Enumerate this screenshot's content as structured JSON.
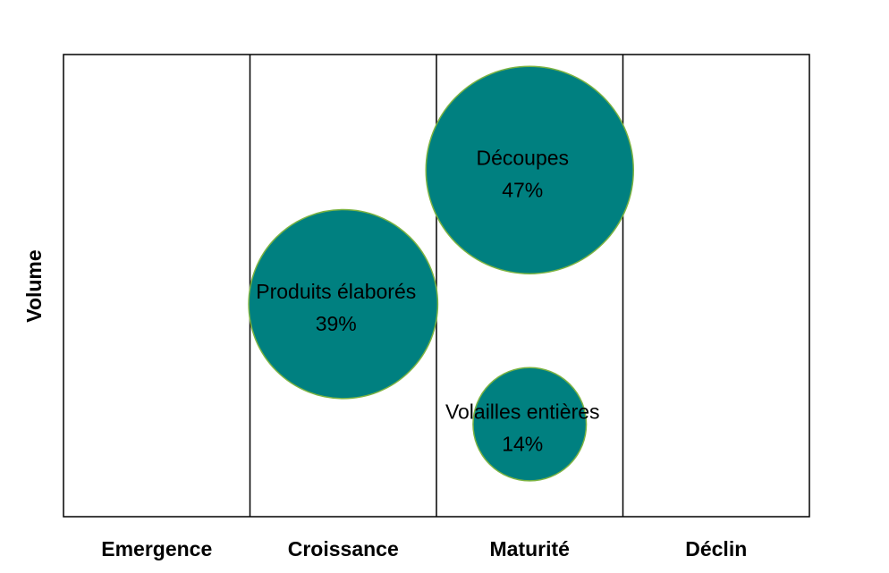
{
  "chart_data": {
    "type": "bubble",
    "title": "",
    "xlabel": "",
    "ylabel": "Volume",
    "categories": [
      "Emergence",
      "Croissance",
      "Maturité",
      "Déclin"
    ],
    "ylim": [
      0,
      100
    ],
    "grid": false,
    "legend": "none",
    "bubble_color": "#008080",
    "bubble_stroke": "#7cb342",
    "points": [
      {
        "category": "Croissance",
        "y": 46,
        "size": 39,
        "label": "Produits élaborés",
        "value_label": "39%"
      },
      {
        "category": "Maturité",
        "y": 75,
        "size": 47,
        "label": "Découpes",
        "value_label": "47%"
      },
      {
        "category": "Maturité",
        "y": 20,
        "size": 14,
        "label": "Volailles entières",
        "value_label": "14%"
      }
    ]
  }
}
